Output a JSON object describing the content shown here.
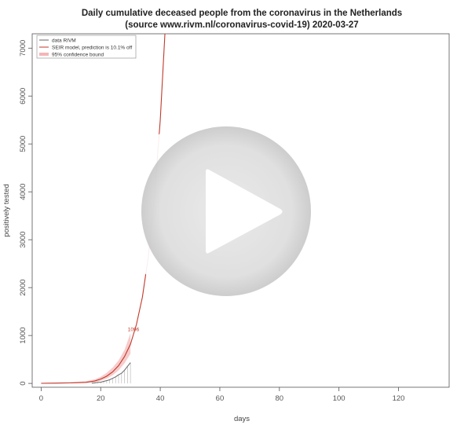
{
  "chart_data": {
    "type": "line",
    "title": "Daily cumulative deceased people from the coronavirus in the Netherlands",
    "subtitle": "(source www.rivm.nl/coronavirus-covid-19)  2020-03-27",
    "xlabel": "days",
    "ylabel": "positively tested",
    "xlim": [
      -3,
      137
    ],
    "ylim": [
      -80,
      7300
    ],
    "xticks": [
      0,
      20,
      40,
      60,
      80,
      100,
      120
    ],
    "yticks": [
      0,
      1000,
      2000,
      3000,
      4000,
      5000,
      6000,
      7000
    ],
    "legend_position": "top-left",
    "grid": false,
    "colors": {
      "data": "#666666",
      "model": "#c0392b",
      "band": "#f3b6b6"
    },
    "series": [
      {
        "name": "data RIVM",
        "x": [
          17,
          18,
          19,
          20,
          21,
          22,
          23,
          24,
          25,
          26,
          27,
          28,
          29,
          30
        ],
        "y": [
          5,
          10,
          20,
          24,
          43,
          58,
          76,
          106,
          136,
          179,
          213,
          276,
          356,
          434
        ]
      },
      {
        "name": "SEIR model,  prediction is 10.1% off",
        "x": [
          0,
          5,
          10,
          15,
          18,
          20,
          22,
          24,
          26,
          28,
          30,
          32,
          34,
          36,
          38,
          40,
          42
        ],
        "y": [
          2,
          5,
          10,
          22,
          50,
          90,
          150,
          240,
          370,
          560,
          820,
          1230,
          1800,
          2650,
          3850,
          5500,
          7800
        ]
      },
      {
        "name": "95% confidence bound",
        "x": [
          0,
          5,
          10,
          15,
          18,
          20,
          22,
          24,
          26,
          28,
          30
        ],
        "lower": [
          0,
          0,
          2,
          8,
          25,
          55,
          100,
          170,
          270,
          420,
          620
        ],
        "upper": [
          12,
          18,
          28,
          45,
          85,
          140,
          220,
          330,
          480,
          700,
          1050
        ]
      }
    ],
    "annotations": [
      {
        "text": "1096",
        "x": 31,
        "y": 1096
      }
    ]
  }
}
